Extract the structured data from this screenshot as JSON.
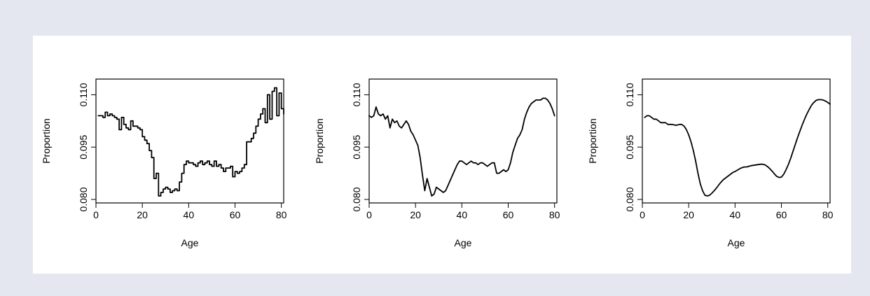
{
  "colors": {
    "page_background": "#e4e7ef",
    "panel_background": "#ffffff",
    "ink": "#000000"
  },
  "chart_data": [
    {
      "type": "line",
      "style": "step",
      "xlabel": "Age",
      "ylabel": "Proportion",
      "xlim": [
        0,
        81
      ],
      "ylim": [
        0.079,
        0.1145
      ],
      "xticks": [
        0,
        20,
        40,
        60,
        80
      ],
      "yticks": [
        0.08,
        0.095,
        0.11
      ],
      "xtick_labels": [
        "0",
        "20",
        "40",
        "60",
        "80"
      ],
      "ytick_labels": [
        "0.080",
        "0.095",
        "0.110"
      ],
      "grid": false,
      "series": [
        {
          "x": [
            1,
            2,
            3,
            4,
            5,
            6,
            7,
            8,
            9,
            10,
            11,
            12,
            13,
            14,
            15,
            16,
            17,
            18,
            19,
            20,
            21,
            22,
            23,
            24,
            25,
            26,
            27,
            28,
            29,
            30,
            31,
            32,
            33,
            34,
            35,
            36,
            37,
            38,
            39,
            40,
            41,
            42,
            43,
            44,
            45,
            46,
            47,
            48,
            49,
            50,
            51,
            52,
            53,
            54,
            55,
            56,
            57,
            58,
            59,
            60,
            61,
            62,
            63,
            64,
            65,
            66,
            67,
            68,
            69,
            70,
            71,
            72,
            73,
            74,
            75,
            76,
            77,
            78,
            79,
            80,
            81
          ],
          "y": [
            0.104,
            0.104,
            0.1035,
            0.105,
            0.104,
            0.1045,
            0.104,
            0.1035,
            0.103,
            0.1,
            0.1035,
            0.1015,
            0.1005,
            0.1,
            0.1025,
            0.101,
            0.101,
            0.1005,
            0.1,
            0.098,
            0.097,
            0.096,
            0.094,
            0.092,
            0.086,
            0.0875,
            0.081,
            0.082,
            0.083,
            0.0835,
            0.083,
            0.082,
            0.0825,
            0.083,
            0.0825,
            0.085,
            0.0875,
            0.09,
            0.091,
            0.0905,
            0.0905,
            0.09,
            0.0895,
            0.0905,
            0.091,
            0.09,
            0.0905,
            0.091,
            0.09,
            0.0895,
            0.091,
            0.0895,
            0.09,
            0.089,
            0.088,
            0.089,
            0.089,
            0.0895,
            0.0865,
            0.088,
            0.0875,
            0.088,
            0.089,
            0.09,
            0.0965,
            0.0965,
            0.0975,
            0.099,
            0.101,
            0.103,
            0.1045,
            0.106,
            0.102,
            0.11,
            0.103,
            0.111,
            0.112,
            0.104,
            0.1105,
            0.106,
            0.1045
          ]
        }
      ]
    },
    {
      "type": "line",
      "xlabel": "Age",
      "ylabel": "Proportion",
      "xlim": [
        0,
        81
      ],
      "ylim": [
        0.079,
        0.1145
      ],
      "xticks": [
        0,
        20,
        40,
        60,
        80
      ],
      "yticks": [
        0.08,
        0.095,
        0.11
      ],
      "xtick_labels": [
        "0",
        "20",
        "40",
        "60",
        "80"
      ],
      "ytick_labels": [
        "0.080",
        "0.095",
        "0.110"
      ],
      "grid": false,
      "series": [
        {
          "x": [
            0,
            1,
            2,
            3,
            4,
            5,
            6,
            7,
            8,
            9,
            10,
            11,
            12,
            13,
            14,
            15,
            16,
            17,
            18,
            19,
            20,
            21,
            22,
            23,
            24,
            25,
            26,
            27,
            28,
            29,
            30,
            31,
            32,
            33,
            34,
            35,
            36,
            37,
            38,
            39,
            40,
            41,
            42,
            43,
            44,
            45,
            46,
            47,
            48,
            49,
            50,
            51,
            52,
            53,
            54,
            55,
            56,
            57,
            58,
            59,
            60,
            61,
            62,
            63,
            64,
            65,
            66,
            67,
            68,
            69,
            70,
            71,
            72,
            73,
            74,
            75,
            76,
            77,
            78,
            79,
            80
          ],
          "y": [
            0.104,
            0.1035,
            0.104,
            0.1065,
            0.1045,
            0.104,
            0.1045,
            0.103,
            0.104,
            0.1005,
            0.103,
            0.102,
            0.1025,
            0.101,
            0.1005,
            0.1015,
            0.1025,
            0.1015,
            0.0995,
            0.0985,
            0.097,
            0.0955,
            0.092,
            0.087,
            0.0825,
            0.086,
            0.0835,
            0.081,
            0.0815,
            0.0835,
            0.083,
            0.0825,
            0.082,
            0.0825,
            0.084,
            0.0855,
            0.087,
            0.0885,
            0.09,
            0.091,
            0.091,
            0.0905,
            0.09,
            0.0905,
            0.091,
            0.0905,
            0.0905,
            0.09,
            0.0905,
            0.0905,
            0.09,
            0.0895,
            0.09,
            0.0905,
            0.0905,
            0.0875,
            0.0875,
            0.088,
            0.0885,
            0.088,
            0.0885,
            0.0905,
            0.0935,
            0.0955,
            0.0975,
            0.0985,
            0.1,
            0.103,
            0.105,
            0.1065,
            0.1075,
            0.108,
            0.1085,
            0.1085,
            0.1085,
            0.109,
            0.109,
            0.1085,
            0.1075,
            0.106,
            0.104
          ]
        }
      ]
    },
    {
      "type": "line",
      "xlabel": "Age",
      "ylabel": "Proportion",
      "xlim": [
        0,
        81
      ],
      "ylim": [
        0.079,
        0.1145
      ],
      "xticks": [
        0,
        20,
        40,
        60,
        80
      ],
      "yticks": [
        0.08,
        0.095,
        0.11
      ],
      "xtick_labels": [
        "0",
        "20",
        "40",
        "60",
        "80"
      ],
      "ytick_labels": [
        "0.080",
        "0.095",
        "0.110"
      ],
      "grid": false,
      "series": [
        {
          "x": [
            1,
            2,
            3,
            4,
            5,
            6,
            7,
            8,
            9,
            10,
            11,
            12,
            13,
            14,
            15,
            16,
            17,
            18,
            19,
            20,
            21,
            22,
            23,
            24,
            25,
            26,
            27,
            28,
            29,
            30,
            31,
            32,
            33,
            34,
            35,
            36,
            37,
            38,
            39,
            40,
            41,
            42,
            43,
            44,
            45,
            46,
            47,
            48,
            49,
            50,
            51,
            52,
            53,
            54,
            55,
            56,
            57,
            58,
            59,
            60,
            61,
            62,
            63,
            64,
            65,
            66,
            67,
            68,
            69,
            70,
            71,
            72,
            73,
            74,
            75,
            76,
            77,
            78,
            79,
            80,
            81
          ],
          "y": [
            0.1035,
            0.104,
            0.104,
            0.1035,
            0.103,
            0.103,
            0.1025,
            0.102,
            0.102,
            0.102,
            0.1015,
            0.1015,
            0.1015,
            0.1013,
            0.1013,
            0.1015,
            0.1015,
            0.101,
            0.1,
            0.0985,
            0.0965,
            0.094,
            0.091,
            0.0875,
            0.0845,
            0.0825,
            0.0812,
            0.081,
            0.0812,
            0.0818,
            0.0825,
            0.0833,
            0.0842,
            0.085,
            0.0857,
            0.0862,
            0.0867,
            0.0872,
            0.0877,
            0.088,
            0.0884,
            0.0888,
            0.0891,
            0.0893,
            0.0893,
            0.0895,
            0.0897,
            0.0898,
            0.0899,
            0.09,
            0.0901,
            0.0901,
            0.0899,
            0.0894,
            0.0888,
            0.0881,
            0.0873,
            0.0866,
            0.0863,
            0.0864,
            0.0872,
            0.0885,
            0.09,
            0.0918,
            0.0938,
            0.0958,
            0.0978,
            0.0996,
            0.1014,
            0.103,
            0.1045,
            0.1058,
            0.107,
            0.1078,
            0.1084,
            0.1086,
            0.1086,
            0.1085,
            0.1082,
            0.1078,
            0.1073
          ]
        }
      ]
    }
  ]
}
